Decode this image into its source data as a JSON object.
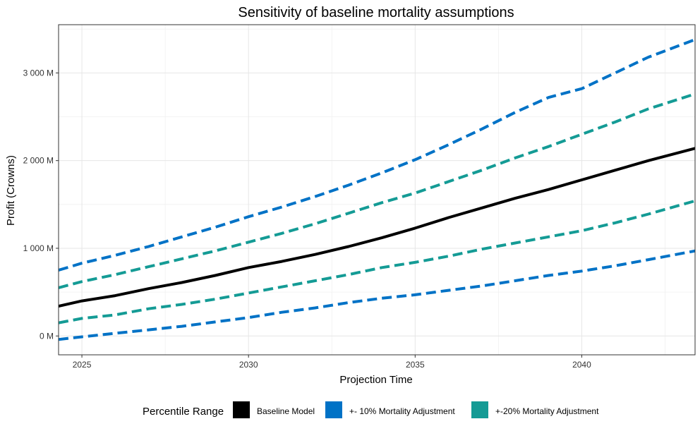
{
  "chart_data": {
    "type": "line",
    "title": "Sensitivity of baseline mortality assumptions",
    "xlabel": "Projection Time",
    "ylabel": "Profit (Crowns)",
    "xlim": [
      2024.3,
      2043.4
    ],
    "ylim": [
      -215,
      3550
    ],
    "x_ticks": [
      2025,
      2030,
      2035,
      2040
    ],
    "x_tick_labels": [
      "2025",
      "2030",
      "2035",
      "2040"
    ],
    "y_ticks": [
      0,
      1000,
      2000,
      3000
    ],
    "y_tick_labels": [
      "0 M",
      "1 000 M",
      "2 000 M",
      "3 000 M"
    ],
    "grid": true,
    "legend": {
      "title": "Percentile Range",
      "position": "bottom",
      "items": [
        {
          "label": "Baseline Model",
          "color": "#000000"
        },
        {
          "label": "+- 10% Mortality Adjustment",
          "color": "#0072C6"
        },
        {
          "label": "+-20% Mortality Adjustment",
          "color": "#149B95"
        }
      ]
    },
    "x": [
      2024.3,
      2025,
      2026,
      2027,
      2028,
      2029,
      2030,
      2031,
      2032,
      2033,
      2034,
      2035,
      2036,
      2037,
      2038,
      2039,
      2040,
      2041,
      2042,
      2043.4
    ],
    "series": [
      {
        "legend_index": 0,
        "color": "#000000",
        "dash": "solid",
        "values": [
          340,
          400,
          460,
          540,
          610,
          690,
          780,
          850,
          930,
          1020,
          1120,
          1230,
          1350,
          1460,
          1570,
          1670,
          1780,
          1890,
          2000,
          2140
        ]
      },
      {
        "legend_index": 1,
        "color": "#0072C6",
        "dash": "dashed",
        "values": [
          750,
          830,
          920,
          1020,
          1130,
          1240,
          1360,
          1470,
          1590,
          1720,
          1860,
          2010,
          2180,
          2360,
          2550,
          2720,
          2820,
          3000,
          3180,
          3380
        ]
      },
      {
        "legend_index": 2,
        "color": "#149B95",
        "dash": "dashed",
        "values": [
          550,
          620,
          700,
          790,
          880,
          970,
          1070,
          1170,
          1280,
          1400,
          1520,
          1630,
          1760,
          1890,
          2030,
          2160,
          2300,
          2440,
          2590,
          2760
        ]
      },
      {
        "legend_index": 2,
        "color": "#149B95",
        "dash": "dashed",
        "values": [
          150,
          200,
          240,
          310,
          360,
          420,
          490,
          560,
          630,
          700,
          780,
          840,
          910,
          990,
          1060,
          1130,
          1200,
          1290,
          1390,
          1540
        ]
      },
      {
        "legend_index": 1,
        "color": "#0072C6",
        "dash": "dashed",
        "values": [
          -40,
          -10,
          30,
          70,
          110,
          160,
          210,
          270,
          320,
          380,
          430,
          470,
          520,
          570,
          630,
          690,
          740,
          800,
          870,
          970
        ]
      }
    ]
  }
}
